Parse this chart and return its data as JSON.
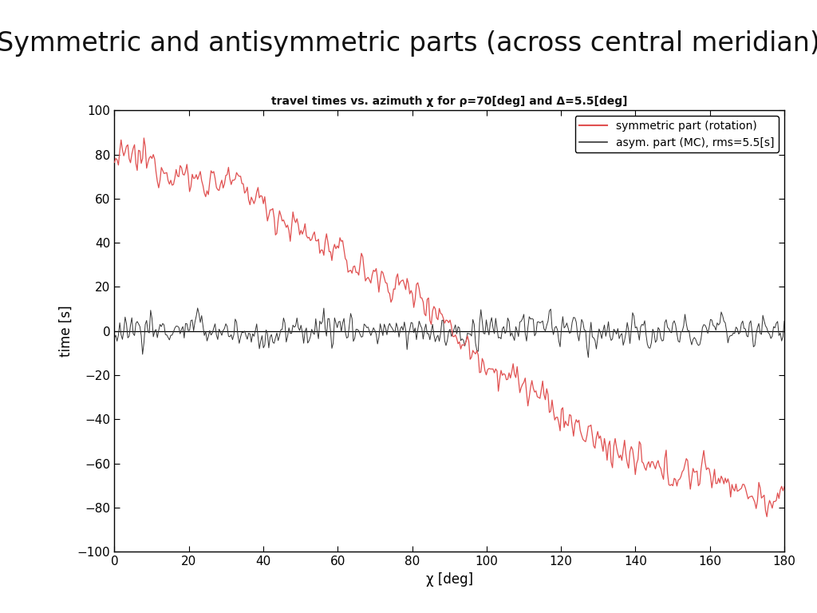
{
  "title": "Symmetric and antisymmetric parts (across central meridian)",
  "subtitle": "travel times vs. azimuth χ for ρ=70[deg] and Δ=5.5[deg]",
  "xlabel": "χ [deg]",
  "ylabel": "time [s]",
  "xlim": [
    0,
    180
  ],
  "ylim": [
    -100,
    100
  ],
  "xticks": [
    0,
    20,
    40,
    60,
    80,
    100,
    120,
    140,
    160,
    180
  ],
  "yticks": [
    -100,
    -80,
    -60,
    -40,
    -20,
    0,
    20,
    40,
    60,
    80,
    100
  ],
  "legend_labels": [
    "symmetric part (rotation)",
    "asym. part (MC), rms=5.5[s]"
  ],
  "sym_color": "#e05050",
  "asym_color": "#333333",
  "bg_color": "#ffffff",
  "title_fontsize": 24,
  "subtitle_fontsize": 10,
  "axis_label_fontsize": 12,
  "tick_fontsize": 11,
  "legend_fontsize": 10,
  "n_points": 500,
  "sym_base": 75,
  "sym_noise": 5,
  "asym_amplitude": 5.5,
  "seed": 12345
}
